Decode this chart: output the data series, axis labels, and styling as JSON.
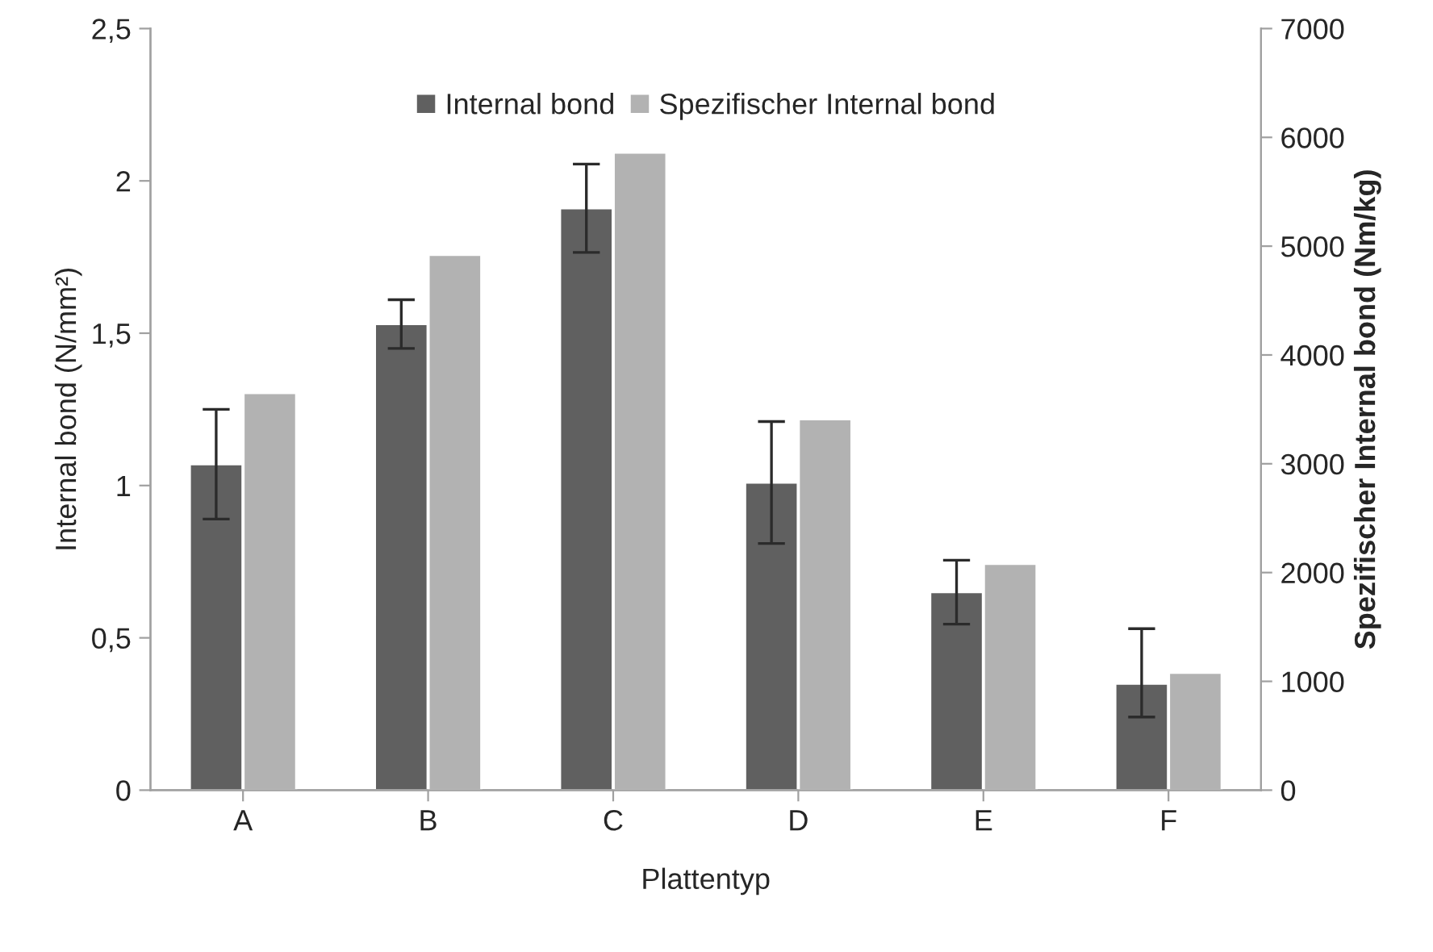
{
  "chart_data": {
    "type": "bar",
    "xlabel": "Plattentyp",
    "ylabel": "Internal bond (N/mm²)",
    "y2label": "Spezifischer Internal bond (Nm/kg)",
    "categories": [
      "A",
      "B",
      "C",
      "D",
      "E",
      "F"
    ],
    "series": [
      {
        "name": "Internal bond",
        "color": "#606060",
        "values": [
          1.07,
          1.53,
          1.91,
          1.01,
          0.65,
          0.35
        ],
        "errors": [
          0.18,
          0.08,
          0.145,
          0.2,
          0.105,
          [
            0.24,
            0.53
          ]
        ]
      },
      {
        "name": "Spezifischer Internal bond",
        "color": "#b2b2b2",
        "axis": "y2",
        "values": [
          3650,
          4920,
          5860,
          3410,
          2080,
          1080
        ]
      }
    ],
    "ylim": [
      0,
      2.5
    ],
    "yticks": [
      0,
      {
        "value": 0.5,
        "label": "0,5"
      },
      1,
      {
        "value": 1.5,
        "label": "1,5"
      },
      2,
      {
        "value": 2.5,
        "label": "2,5"
      }
    ],
    "y2lim": [
      0,
      7000
    ],
    "y2ticks": [
      0,
      1000,
      2000,
      3000,
      4000,
      5000,
      6000,
      7000
    ],
    "grid": false,
    "legend": "top"
  }
}
